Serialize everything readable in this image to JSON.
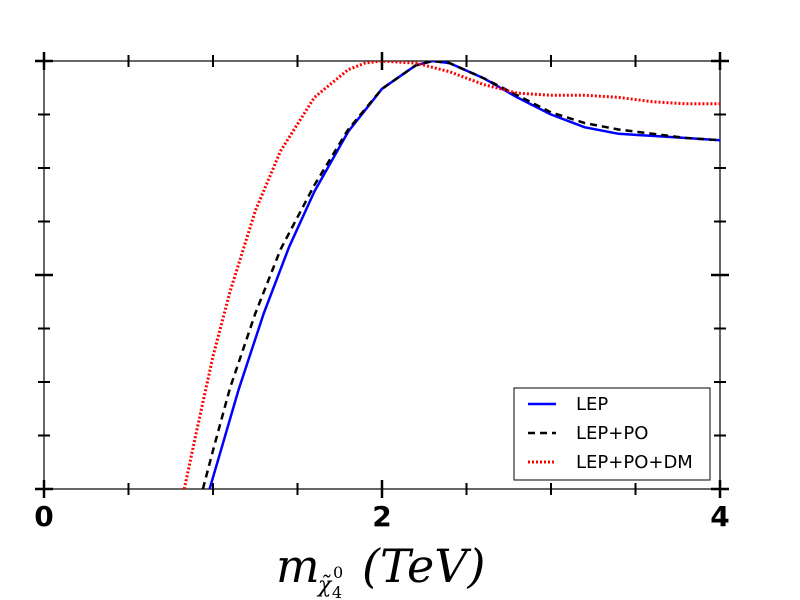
{
  "chart_data": {
    "type": "line",
    "title": "",
    "xlabel": {
      "base": "m",
      "sub_symbol": "χ̃",
      "sub_index": "4",
      "sub_superscript": "0",
      "unit": "(TeV)"
    },
    "ylabel": "",
    "xlim": [
      0,
      4
    ],
    "ylim": [
      0,
      1
    ],
    "x_ticks": [
      0,
      0.5,
      1,
      1.5,
      2,
      2.5,
      3,
      3.5,
      4
    ],
    "x_tick_labels": [
      {
        "x": 0,
        "label": "0"
      },
      {
        "x": 2,
        "label": "2"
      },
      {
        "x": 4,
        "label": "4"
      }
    ],
    "y_ticks": [
      0,
      0.125,
      0.25,
      0.375,
      0.5,
      0.625,
      0.75,
      0.875,
      1
    ],
    "y_major_ticks": [
      0,
      0.5,
      1
    ],
    "grid": false,
    "legend_position": "bottom-right",
    "series": [
      {
        "name": "LEP",
        "color": "#0000ff",
        "dash": "solid",
        "x": [
          0.98,
          1.05,
          1.15,
          1.3,
          1.45,
          1.6,
          1.8,
          2.0,
          2.2,
          2.3,
          2.4,
          2.6,
          2.8,
          3.0,
          3.2,
          3.4,
          3.6,
          3.8,
          4.0
        ],
        "y": [
          0.0,
          0.095,
          0.23,
          0.41,
          0.565,
          0.695,
          0.835,
          0.935,
          0.99,
          1.0,
          0.995,
          0.96,
          0.915,
          0.875,
          0.845,
          0.83,
          0.825,
          0.82,
          0.815
        ]
      },
      {
        "name": "LEP+PO",
        "color": "#000000",
        "dash": "dashed",
        "x": [
          0.94,
          1.0,
          1.1,
          1.25,
          1.4,
          1.6,
          1.8,
          2.0,
          2.2,
          2.3,
          2.4,
          2.6,
          2.8,
          3.0,
          3.2,
          3.4,
          3.6,
          3.8,
          4.0
        ],
        "y": [
          0.0,
          0.09,
          0.235,
          0.41,
          0.56,
          0.71,
          0.84,
          0.935,
          0.99,
          1.0,
          0.995,
          0.96,
          0.92,
          0.88,
          0.855,
          0.84,
          0.83,
          0.82,
          0.815
        ]
      },
      {
        "name": "LEP+PO+DM",
        "color": "#ff0000",
        "dash": "dotted",
        "x": [
          0.83,
          0.9,
          1.0,
          1.1,
          1.25,
          1.4,
          1.6,
          1.8,
          1.9,
          2.0,
          2.2,
          2.4,
          2.6,
          2.8,
          3.0,
          3.2,
          3.4,
          3.6,
          3.8,
          4.0
        ],
        "y": [
          0.0,
          0.13,
          0.31,
          0.46,
          0.65,
          0.79,
          0.915,
          0.98,
          0.995,
          1.0,
          0.995,
          0.975,
          0.945,
          0.925,
          0.92,
          0.92,
          0.915,
          0.905,
          0.9,
          0.9
        ]
      }
    ]
  }
}
